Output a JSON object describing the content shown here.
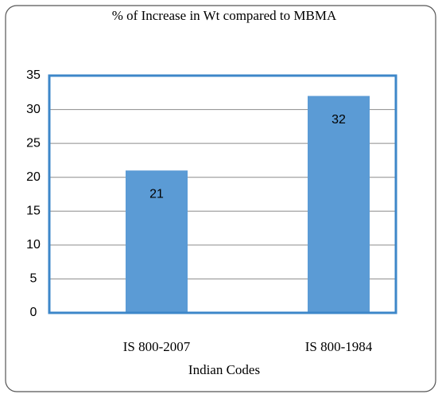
{
  "chart_data": {
    "type": "bar",
    "title": "% of Increase in Wt compared to MBMA",
    "x_label": "Indian Codes",
    "categories": [
      "IS 800-2007",
      "IS 800-1984"
    ],
    "values": [
      21,
      32
    ],
    "color": "#5b9bd5",
    "ylim": [
      0,
      35
    ],
    "yticks": [
      0,
      5,
      10,
      15,
      20,
      25,
      30,
      35
    ],
    "grid": true
  }
}
